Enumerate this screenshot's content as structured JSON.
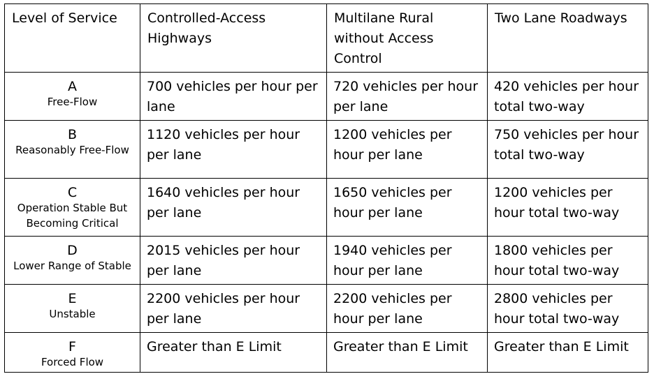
{
  "table": {
    "headers": [
      "Level of Service",
      "Controlled-Access Highways",
      "Multilane Rural without Access Control",
      "Two Lane Roadways"
    ],
    "rows": [
      {
        "level": "A",
        "desc": "Free-Flow",
        "controlled": "700 vehicles per hour per lane",
        "multilane": "720 vehicles per hour per lane",
        "two_lane": "420 vehicles per hour total two-way"
      },
      {
        "level": "B",
        "desc": "Reasonably Free-Flow",
        "controlled": "1120 vehicles per hour per lane",
        "multilane": "1200 vehicles per hour per lane",
        "two_lane": "750 vehicles per hour total two-way"
      },
      {
        "level": "C",
        "desc": "Operation Stable But Becoming Critical",
        "controlled": "1640 vehicles per hour per lane",
        "multilane": "1650 vehicles per hour per lane",
        "two_lane": "1200 vehicles per hour total two-way"
      },
      {
        "level": "D",
        "desc": "Lower Range of Stable",
        "controlled": "2015 vehicles per hour per lane",
        "multilane": "1940 vehicles per hour per lane",
        "two_lane": "1800 vehicles per hour total two-way"
      },
      {
        "level": "E",
        "desc": "Unstable",
        "controlled": "2200 vehicles per hour per lane",
        "multilane": "2200 vehicles per hour per lane",
        "two_lane": "2800 vehicles per hour total two-way"
      },
      {
        "level": "F",
        "desc": "Forced Flow",
        "controlled": "Greater than E Limit",
        "multilane": "Greater than E Limit",
        "two_lane": "Greater than E Limit"
      }
    ]
  }
}
